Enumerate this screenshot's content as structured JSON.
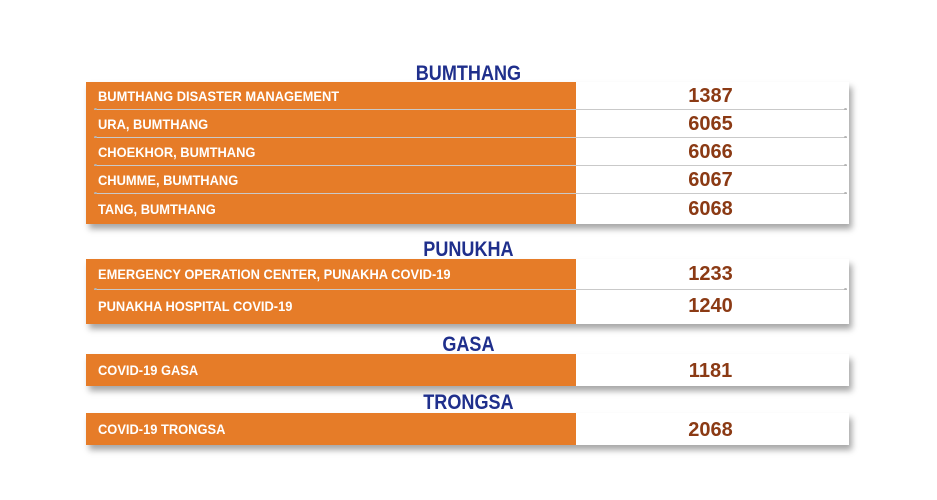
{
  "sections": [
    {
      "title": "BUMTHANG",
      "rows": [
        {
          "name": "BUMTHANG DISASTER MANAGEMENT",
          "number": "1387"
        },
        {
          "name": "URA, BUMTHANG",
          "number": "6065"
        },
        {
          "name": "CHOEKHOR, BUMTHANG",
          "number": "6066"
        },
        {
          "name": "CHUMME, BUMTHANG",
          "number": "6067"
        },
        {
          "name": "TANG, BUMTHANG",
          "number": "6068"
        }
      ]
    },
    {
      "title": "PUNUKHA",
      "rows": [
        {
          "name": "EMERGENCY OPERATION CENTER, PUNAKHA COVID-19",
          "number": "1233"
        },
        {
          "name": "PUNAKHA HOSPITAL COVID-19",
          "number": "1240"
        }
      ]
    },
    {
      "title": "GASA",
      "rows": [
        {
          "name": "COVID-19 GASA",
          "number": "1181"
        }
      ]
    },
    {
      "title": "TRONGSA",
      "rows": [
        {
          "name": "COVID-19 TRONGSA",
          "number": "2068"
        }
      ]
    }
  ],
  "colors": {
    "title": "#1f2f8c",
    "label_background": "#e67c28",
    "label_text": "#ffffff",
    "number_text": "#8b3a14"
  }
}
